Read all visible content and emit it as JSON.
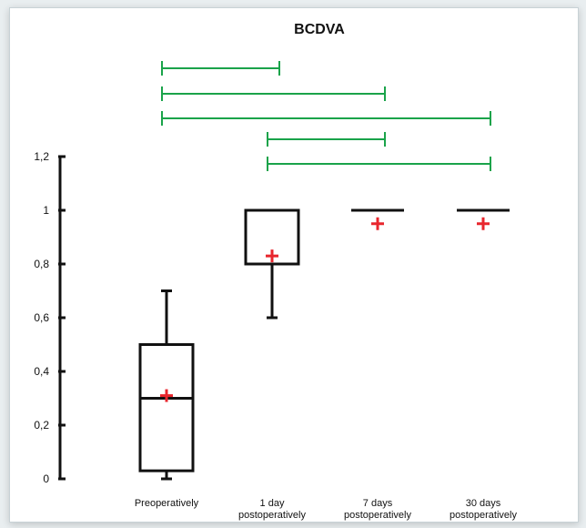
{
  "chart_data": {
    "type": "box",
    "title": "BCDVA",
    "xlabel": "",
    "ylabel": "",
    "ylim": [
      0,
      1.2
    ],
    "y_ticks": [
      "0",
      "0,2",
      "0,4",
      "0,6",
      "0,8",
      "1",
      "1,2"
    ],
    "y_tick_values": [
      0,
      0.2,
      0.4,
      0.6,
      0.8,
      1.0,
      1.2
    ],
    "categories": [
      [
        "Preoperatively"
      ],
      [
        "1 day",
        "postoperatively"
      ],
      [
        "7 days",
        "postoperatively"
      ],
      [
        "30 days",
        "postoperatively"
      ]
    ],
    "boxes": [
      {
        "min": 0.0,
        "q1": 0.03,
        "median": 0.3,
        "q3": 0.5,
        "max": 0.7,
        "mean": 0.31
      },
      {
        "min": 0.6,
        "q1": 0.8,
        "median": 0.8,
        "q3": 1.0,
        "max": 1.0,
        "mean": 0.83
      },
      {
        "min": 1.0,
        "q1": 1.0,
        "median": 1.0,
        "q3": 1.0,
        "max": 1.0,
        "mean": 0.95
      },
      {
        "min": 1.0,
        "q1": 1.0,
        "median": 1.0,
        "q3": 1.0,
        "max": 1.0,
        "mean": 0.95
      }
    ],
    "significance_brackets": [
      {
        "from": 0,
        "to": 1
      },
      {
        "from": 0,
        "to": 2
      },
      {
        "from": 0,
        "to": 3
      },
      {
        "from": 1,
        "to": 2
      },
      {
        "from": 1,
        "to": 3
      }
    ],
    "colors": {
      "box": "#111111",
      "mean_marker": "#e8262d",
      "bracket": "#1aa34a"
    }
  }
}
